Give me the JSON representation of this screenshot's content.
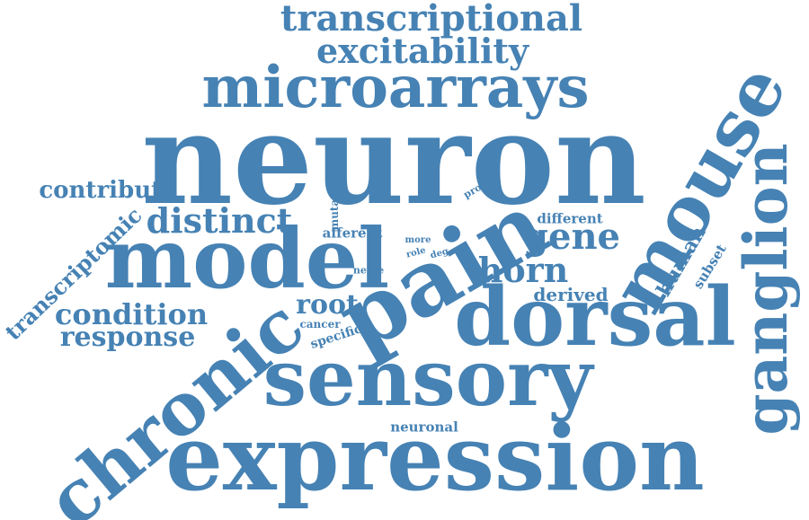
{
  "color": "#4682b4",
  "words": {
    "neuron": "neuron",
    "expression": "expression",
    "sensory": "sensory",
    "dorsal": "dorsal",
    "pain": "pain",
    "model": "model",
    "chronic": "chronic",
    "mouse": "mouse",
    "ganglion": "ganglion",
    "microarrays": "microarrays",
    "transcriptional": "transcriptional",
    "excitability": "excitability",
    "distinct": "distinct",
    "gene": "gene",
    "horn": "horn",
    "condition": "condition",
    "response": "response",
    "contribute": "contribute",
    "transcriptomic": "transcriptomic",
    "root": "root",
    "human": "human",
    "derived": "derived",
    "different": "different",
    "afferent": "afferent",
    "subset": "subset",
    "mutant": "mutant",
    "profile": "profile",
    "more": "more",
    "role": "role",
    "deg": "deg",
    "nerve": "nerve",
    "cancer": "cancer",
    "specific": "specific",
    "neuronal": "neuronal"
  }
}
